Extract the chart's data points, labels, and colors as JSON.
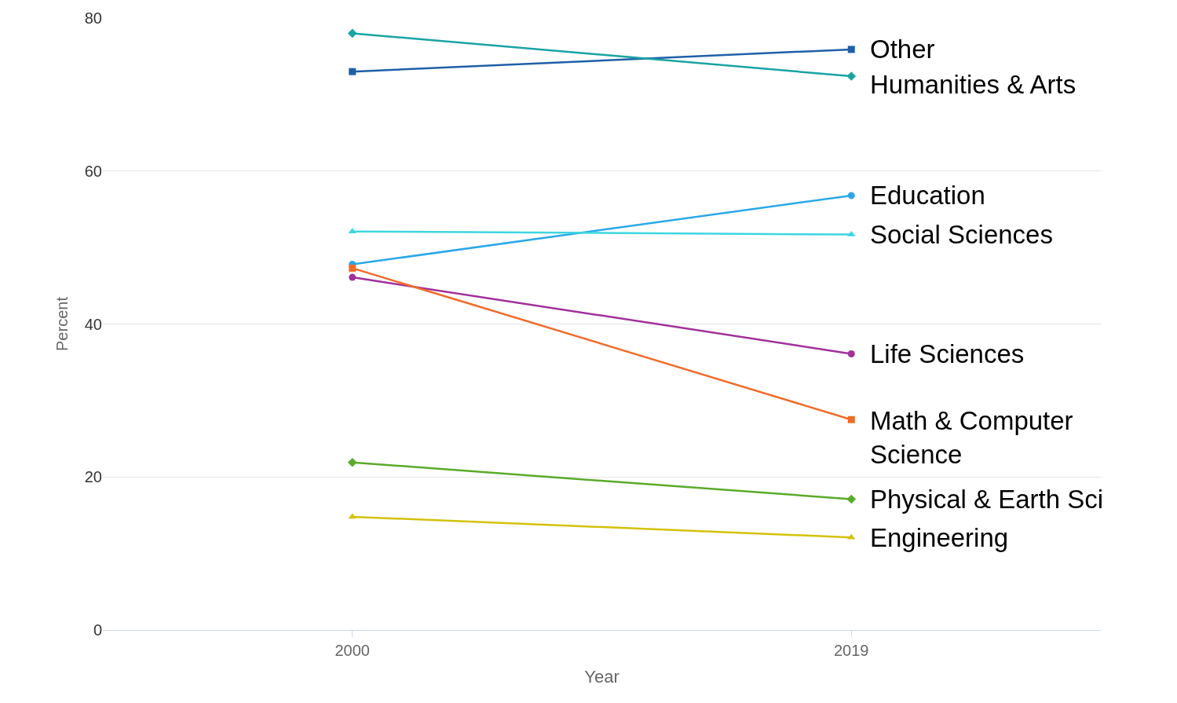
{
  "chart_data": {
    "type": "line",
    "xlabel": "Year",
    "ylabel": "Percent",
    "x": [
      2000,
      2019
    ],
    "xlim": [
      1990.5,
      2028.5
    ],
    "xticks": [
      2000,
      2019
    ],
    "ylim": [
      0,
      80
    ],
    "yticks": [
      0,
      20,
      40,
      60,
      80
    ],
    "grid": "y",
    "legend": false,
    "line_style": "solid",
    "series": [
      {
        "name": "Other",
        "color": "#1f5fa8",
        "marker": "square",
        "values": [
          73.0,
          75.9
        ]
      },
      {
        "name": "Humanities & Arts",
        "color": "#1aa3a3",
        "marker": "diamond",
        "values": [
          78.0,
          72.4
        ]
      },
      {
        "name": "Education",
        "color": "#2aa8e8",
        "marker": "circle",
        "values": [
          47.8,
          56.8
        ]
      },
      {
        "name": "Social Sciences",
        "color": "#3dd6e0",
        "marker": "triangle",
        "values": [
          52.1,
          51.7
        ]
      },
      {
        "name": "Life Sciences",
        "color": "#a0309a",
        "marker": "circle",
        "values": [
          46.1,
          36.1
        ]
      },
      {
        "name": "Math & Computer Science",
        "color": "#f06a28",
        "marker": "square",
        "values": [
          47.3,
          27.5
        ]
      },
      {
        "name": "Physical & Earth Sci",
        "color": "#5aab2a",
        "marker": "diamond",
        "values": [
          21.9,
          17.1
        ]
      },
      {
        "name": "Engineering",
        "color": "#d4c20a",
        "marker": "triangle",
        "values": [
          14.8,
          12.1
        ]
      }
    ]
  }
}
